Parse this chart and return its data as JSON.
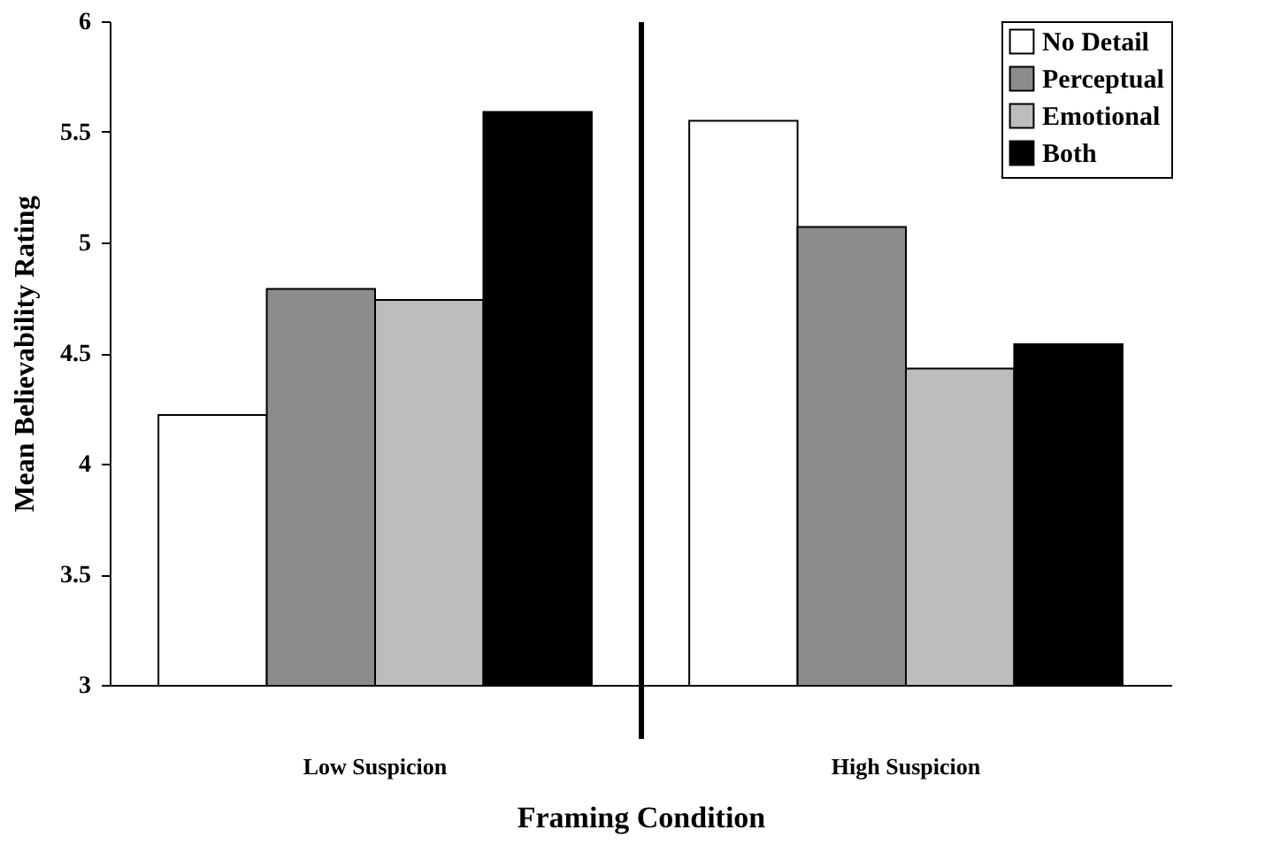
{
  "chart_data": {
    "type": "bar",
    "xlabel": "Framing Condition",
    "ylabel": "Mean Believability Rating",
    "categories": [
      "Low Suspicion",
      "High Suspicion"
    ],
    "series": [
      {
        "name": "No Detail",
        "color": "#ffffff",
        "values": [
          4.22,
          5.55
        ]
      },
      {
        "name": "Perceptual",
        "color": "#8c8c8c",
        "values": [
          4.79,
          5.07
        ]
      },
      {
        "name": "Emotional",
        "color": "#bdbdbd",
        "values": [
          4.74,
          4.43
        ]
      },
      {
        "name": "Both",
        "color": "#000000",
        "values": [
          5.59,
          4.54
        ]
      }
    ],
    "ylim": [
      3,
      6
    ],
    "yticks": [
      3,
      3.5,
      4,
      4.5,
      5,
      5.5,
      6
    ],
    "grid": false,
    "legend": "top right"
  }
}
